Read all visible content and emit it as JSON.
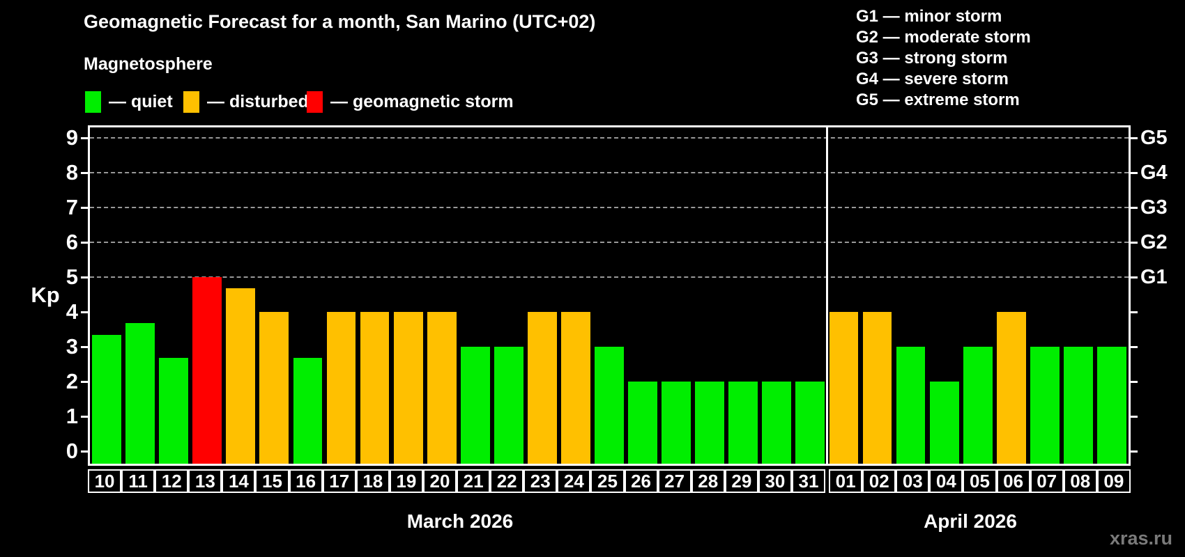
{
  "page": {
    "background": "#000000",
    "watermark": "xras.ru"
  },
  "header": {
    "title": "Geomagnetic Forecast for a month, San Marino (UTC+02)",
    "subtitle": "Magnetosphere",
    "legend": [
      {
        "key": "quiet",
        "label": "— quiet",
        "color": "#00ee00"
      },
      {
        "key": "disturbed",
        "label": "— disturbed",
        "color": "#ffc000"
      },
      {
        "key": "storm",
        "label": "— geomagnetic storm",
        "color": "#ff0000"
      }
    ],
    "g_scale_legend": [
      "G1 — minor storm",
      "G2 — moderate storm",
      "G3 — strong storm",
      "G4 — severe storm",
      "G5 — extreme storm"
    ]
  },
  "chart_data": {
    "type": "bar",
    "title": "Geomagnetic Forecast for a month, San Marino (UTC+02)",
    "subtitle": "Magnetosphere",
    "ylabel": "Kp",
    "ylim": [
      0,
      9
    ],
    "y_ticks": [
      0,
      1,
      2,
      3,
      4,
      5,
      6,
      7,
      8,
      9
    ],
    "gridlines_at": [
      5,
      6,
      7,
      8,
      9
    ],
    "grid": "dashed-horizontal-only",
    "legend_position": "top-left",
    "right_axis_labels": [
      {
        "kp": 5,
        "label": "G1"
      },
      {
        "kp": 6,
        "label": "G2"
      },
      {
        "kp": 7,
        "label": "G3"
      },
      {
        "kp": 8,
        "label": "G4"
      },
      {
        "kp": 9,
        "label": "G5"
      }
    ],
    "colors": {
      "quiet": "#00ee00",
      "disturbed": "#ffc000",
      "storm": "#ff0000"
    },
    "months": [
      {
        "label": "March 2026",
        "days": 22
      },
      {
        "label": "April 2026",
        "days": 9
      }
    ],
    "bars": [
      {
        "day": "10",
        "month": "March 2026",
        "value": 3.33,
        "level": "quiet"
      },
      {
        "day": "11",
        "month": "March 2026",
        "value": 3.67,
        "level": "quiet"
      },
      {
        "day": "12",
        "month": "March 2026",
        "value": 2.67,
        "level": "quiet"
      },
      {
        "day": "13",
        "month": "March 2026",
        "value": 5.0,
        "level": "storm"
      },
      {
        "day": "14",
        "month": "March 2026",
        "value": 4.67,
        "level": "disturbed"
      },
      {
        "day": "15",
        "month": "March 2026",
        "value": 4.0,
        "level": "disturbed"
      },
      {
        "day": "16",
        "month": "March 2026",
        "value": 2.67,
        "level": "quiet"
      },
      {
        "day": "17",
        "month": "March 2026",
        "value": 4.0,
        "level": "disturbed"
      },
      {
        "day": "18",
        "month": "March 2026",
        "value": 4.0,
        "level": "disturbed"
      },
      {
        "day": "19",
        "month": "March 2026",
        "value": 4.0,
        "level": "disturbed"
      },
      {
        "day": "20",
        "month": "March 2026",
        "value": 4.0,
        "level": "disturbed"
      },
      {
        "day": "21",
        "month": "March 2026",
        "value": 3.0,
        "level": "quiet"
      },
      {
        "day": "22",
        "month": "March 2026",
        "value": 3.0,
        "level": "quiet"
      },
      {
        "day": "23",
        "month": "March 2026",
        "value": 4.0,
        "level": "disturbed"
      },
      {
        "day": "24",
        "month": "March 2026",
        "value": 4.0,
        "level": "disturbed"
      },
      {
        "day": "25",
        "month": "March 2026",
        "value": 3.0,
        "level": "quiet"
      },
      {
        "day": "26",
        "month": "March 2026",
        "value": 2.0,
        "level": "quiet"
      },
      {
        "day": "27",
        "month": "March 2026",
        "value": 2.0,
        "level": "quiet"
      },
      {
        "day": "28",
        "month": "March 2026",
        "value": 2.0,
        "level": "quiet"
      },
      {
        "day": "29",
        "month": "March 2026",
        "value": 2.0,
        "level": "quiet"
      },
      {
        "day": "30",
        "month": "March 2026",
        "value": 2.0,
        "level": "quiet"
      },
      {
        "day": "31",
        "month": "March 2026",
        "value": 2.0,
        "level": "quiet"
      },
      {
        "day": "01",
        "month": "April 2026",
        "value": 4.0,
        "level": "disturbed"
      },
      {
        "day": "02",
        "month": "April 2026",
        "value": 4.0,
        "level": "disturbed"
      },
      {
        "day": "03",
        "month": "April 2026",
        "value": 3.0,
        "level": "quiet"
      },
      {
        "day": "04",
        "month": "April 2026",
        "value": 2.0,
        "level": "quiet"
      },
      {
        "day": "05",
        "month": "April 2026",
        "value": 3.0,
        "level": "quiet"
      },
      {
        "day": "06",
        "month": "April 2026",
        "value": 4.0,
        "level": "disturbed"
      },
      {
        "day": "07",
        "month": "April 2026",
        "value": 3.0,
        "level": "quiet"
      },
      {
        "day": "08",
        "month": "April 2026",
        "value": 3.0,
        "level": "quiet"
      },
      {
        "day": "09",
        "month": "April 2026",
        "value": 3.0,
        "level": "quiet"
      }
    ]
  }
}
